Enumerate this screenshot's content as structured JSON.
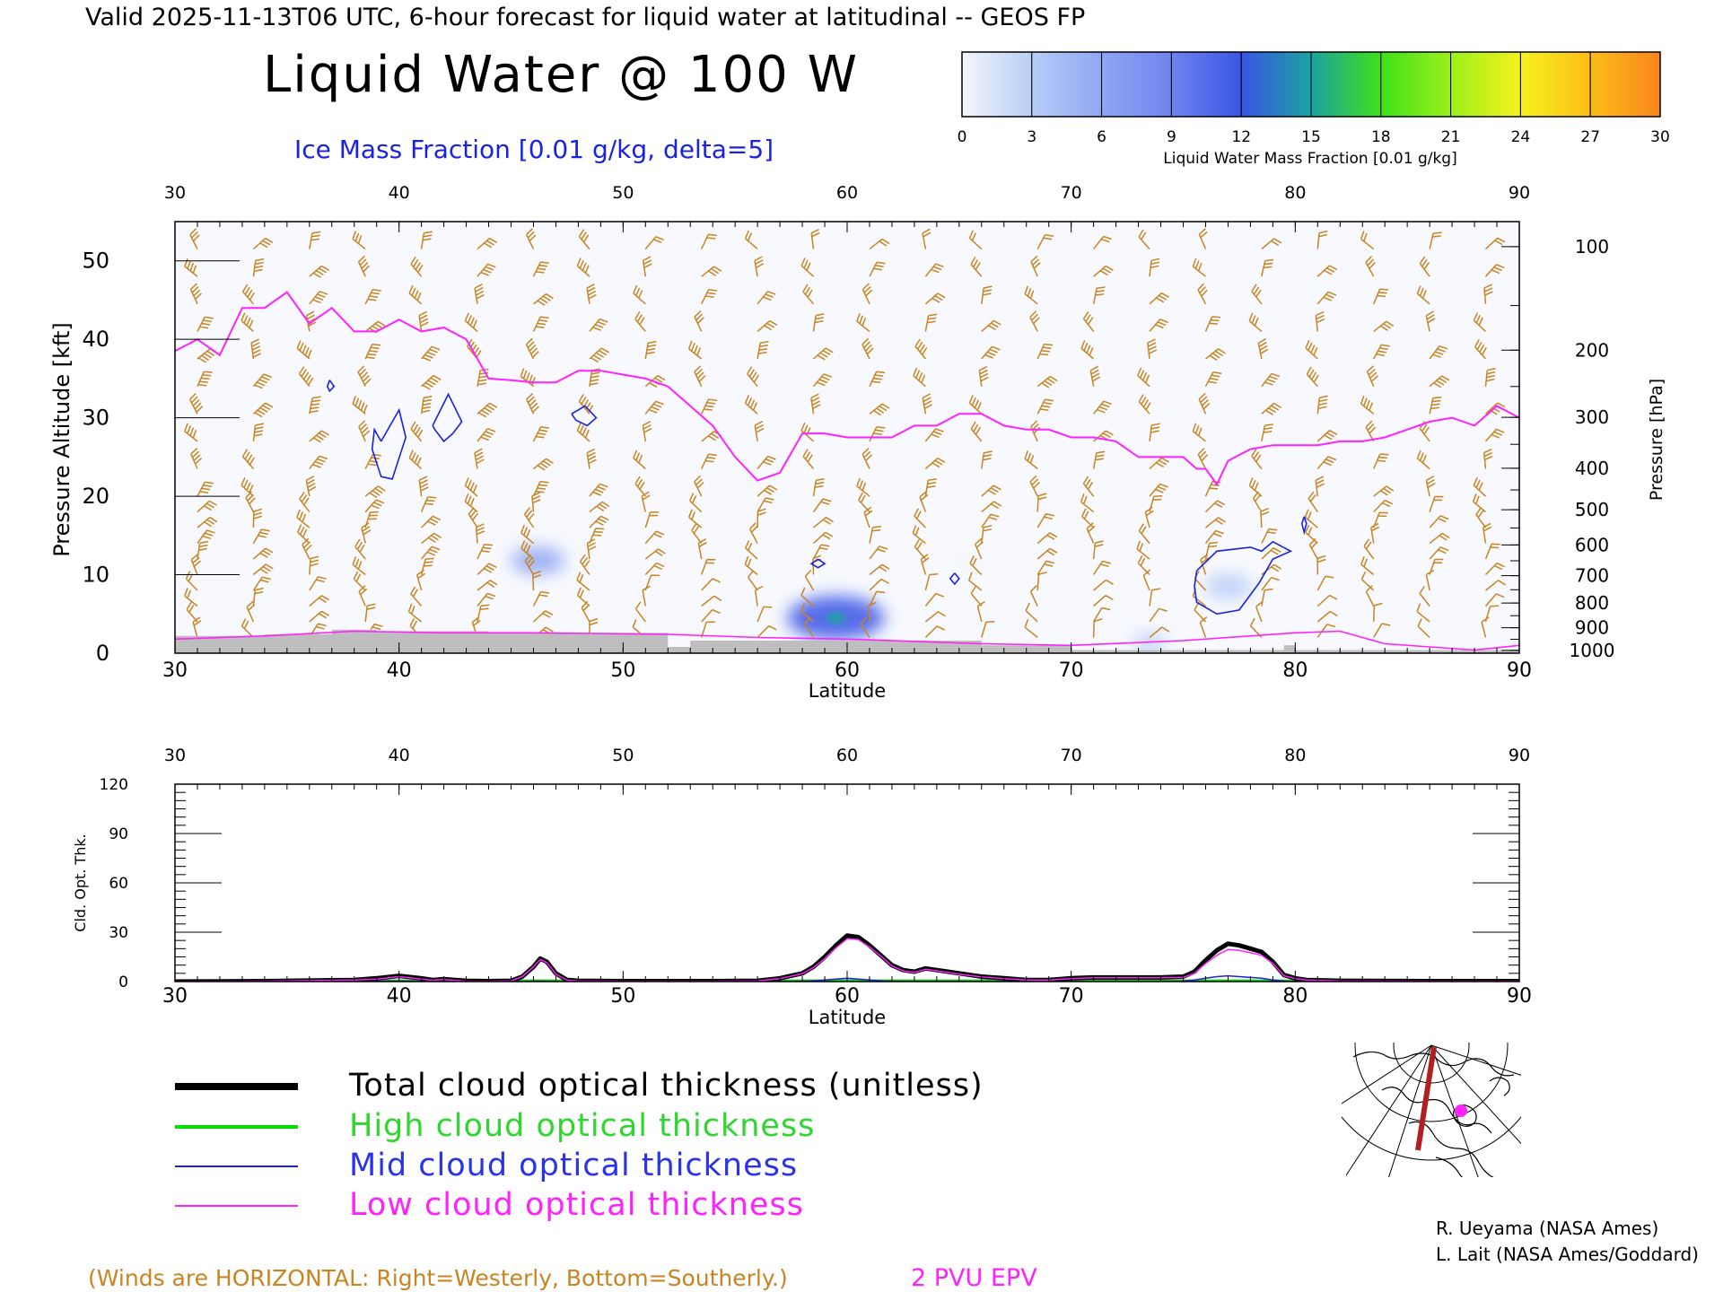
{
  "header": {
    "valid_line": "Valid 2025-11-13T06 UTC, 6-hour forecast for liquid water at latitudinal -- GEOS FP",
    "title": "Liquid Water @ 100 W",
    "subtitle": "Ice Mass Fraction [0.01 g/kg, delta=5]"
  },
  "colorbar": {
    "label": "Liquid Water Mass Fraction [0.01 g/kg]",
    "ticks": [
      "0",
      "3",
      "6",
      "9",
      "12",
      "15",
      "18",
      "21",
      "24",
      "27",
      "30"
    ],
    "colors": [
      "#f4f6fc",
      "#b8cdf6",
      "#8fa6f4",
      "#6e84ee",
      "#3a55e6",
      "#1aa3a0",
      "#3fe01a",
      "#9bf01a",
      "#f6f21c",
      "#fcbd17",
      "#f9851c",
      "#f43215"
    ]
  },
  "colors": {
    "wind_barb": "#c88420",
    "epv": "#ff22ff",
    "ice_contour": "#1a22e0",
    "terrain": "#bebebe",
    "total": "#000000",
    "high": "#00dd00",
    "mid": "#1a22e0",
    "low": "#ff22ff"
  },
  "chart_data": [
    {
      "type": "heatmap",
      "title": "Liquid Water @ 100 W",
      "xlabel": "Latitude",
      "ylabel": "Pressure Altitude [kft]",
      "y2label": "Pressure [hPa]",
      "xlim": [
        30,
        90
      ],
      "ylim": [
        0,
        55
      ],
      "x_ticks": [
        "30",
        "40",
        "50",
        "60",
        "70",
        "80",
        "90"
      ],
      "y_ticks": [
        "0",
        "10",
        "20",
        "30",
        "40",
        "50"
      ],
      "pressure_ticks": [
        "100",
        "200",
        "300",
        "400",
        "500",
        "600",
        "700",
        "800",
        "900",
        "1000"
      ],
      "liquid_water_patches": [
        {
          "lat": 46.2,
          "alt": 11.8,
          "value": 5
        },
        {
          "lat": 59.5,
          "alt": 4.5,
          "value": 11
        },
        {
          "lat": 65.5,
          "alt": 11.5,
          "value": 1
        },
        {
          "lat": 77.0,
          "alt": 8.5,
          "value": 4
        },
        {
          "lat": 73.5,
          "alt": 1.3,
          "value": 2
        }
      ],
      "epv_2pvu": {
        "name": "2 PVU EPV",
        "lat": [
          30,
          31,
          32,
          33,
          34,
          35,
          36,
          37,
          38,
          39,
          40,
          41,
          42,
          43,
          44,
          45,
          46,
          47,
          48,
          49,
          50,
          51,
          52,
          53,
          54,
          55,
          56,
          57,
          58,
          59,
          60,
          61,
          62,
          63,
          64,
          65,
          66,
          67,
          68,
          69,
          70,
          71,
          72,
          73,
          74,
          75,
          75.6,
          76,
          76.5,
          77,
          78,
          79,
          80,
          81,
          82,
          83,
          84,
          85,
          86,
          87,
          88,
          89,
          90
        ],
        "alt": [
          38.5,
          40,
          38,
          44,
          44,
          46,
          42,
          44,
          41,
          41,
          42.5,
          41,
          41.5,
          40,
          35,
          34.8,
          34.5,
          34.5,
          36,
          36,
          35.5,
          35,
          34,
          31.5,
          29,
          25,
          22,
          23,
          28,
          28,
          27.5,
          27.5,
          27.5,
          29,
          29,
          30.5,
          30.5,
          29,
          28.5,
          28.5,
          27.5,
          27.5,
          27,
          25,
          25,
          25,
          23.5,
          23.5,
          21.5,
          24.5,
          26,
          26.5,
          26.5,
          26.5,
          27,
          27,
          27.5,
          28.5,
          29.5,
          30,
          29,
          31.5,
          30
        ]
      },
      "terrain_height_kft": {
        "lat": [
          30,
          34,
          37,
          39,
          44,
          51.7,
          52,
          53,
          60,
          66,
          70,
          75,
          79.5,
          80,
          90
        ],
        "alt": [
          2.2,
          2.4,
          3.0,
          2.8,
          2.6,
          2.6,
          0.8,
          1.6,
          1.6,
          1.0,
          0.4,
          0.4,
          1.0,
          0.4,
          0.2
        ]
      },
      "ice_contours": [
        {
          "lat": [
            39.2,
            40.0,
            40.3,
            39.9,
            39.7,
            39.2,
            38.8,
            38.9,
            39.2
          ],
          "alt": [
            27.0,
            31.0,
            27.5,
            24.0,
            22.2,
            22.5,
            26.0,
            28.5,
            27.0
          ]
        },
        {
          "lat": [
            41.5,
            42.2,
            42.8,
            42.4,
            42.0,
            41.6,
            41.5
          ],
          "alt": [
            29.0,
            33.0,
            29.5,
            28.0,
            27.0,
            28.5,
            29.0
          ]
        },
        {
          "lat": [
            47.7,
            48.3,
            48.8,
            48.4,
            47.9,
            47.7
          ],
          "alt": [
            30.5,
            31.5,
            30.0,
            29.0,
            29.7,
            30.5
          ]
        },
        {
          "lat": [
            36.9,
            37.1,
            36.9,
            36.8,
            36.9
          ],
          "alt": [
            34.8,
            34.0,
            33.4,
            34.0,
            34.8
          ]
        },
        {
          "lat": [
            58.7,
            59.0,
            58.7,
            58.4,
            58.7
          ],
          "alt": [
            12.0,
            11.4,
            10.9,
            11.4,
            12.0
          ]
        },
        {
          "lat": [
            64.8,
            65.0,
            64.8,
            64.6,
            64.8
          ],
          "alt": [
            10.2,
            9.5,
            8.8,
            9.5,
            10.2
          ]
        },
        {
          "lat": [
            75.6,
            76.5,
            78.0,
            78.5,
            79.0,
            79.8,
            79.0,
            78.4,
            77.5,
            76.5,
            75.6,
            75.5,
            75.6
          ],
          "alt": [
            10.5,
            13.0,
            13.5,
            13.0,
            14.2,
            13.0,
            12.0,
            9.0,
            5.5,
            5.0,
            6.5,
            8.5,
            10.5
          ]
        },
        {
          "lat": [
            80.4,
            80.5,
            80.4,
            80.3,
            80.4
          ],
          "alt": [
            17.4,
            16.5,
            15.4,
            16.5,
            17.4
          ]
        }
      ],
      "wind_barbs_note": "(Winds are HORIZONTAL: Right=Westerly, Bottom=Southerly.)",
      "epv_label": "2 PVU EPV"
    },
    {
      "type": "line",
      "xlabel": "Latitude",
      "ylabel": "Cld. Opt. Thk.",
      "xlim": [
        30,
        90
      ],
      "ylim": [
        0,
        120
      ],
      "x_ticks": [
        "30",
        "40",
        "50",
        "60",
        "70",
        "80",
        "90"
      ],
      "y_ticks": [
        "0",
        "30",
        "60",
        "90",
        "120"
      ],
      "x": [
        30,
        34,
        38,
        39,
        40,
        41,
        41.5,
        42,
        43,
        44,
        45,
        45.5,
        46,
        46.3,
        46.6,
        47,
        47.5,
        48,
        50,
        54,
        56,
        57,
        58,
        58.5,
        59,
        59.5,
        60,
        60.5,
        61,
        61.5,
        62,
        62.5,
        63,
        63.5,
        64,
        64.5,
        65,
        66,
        67,
        68,
        69,
        70,
        71,
        73,
        74,
        75,
        75.5,
        76,
        76.5,
        77,
        77.5,
        78,
        78.5,
        79,
        79.5,
        80,
        80.5,
        82,
        86,
        90
      ],
      "series": [
        {
          "name": "Total cloud optical thickness (unitless)",
          "values": [
            0,
            0.3,
            1,
            2,
            3.5,
            2,
            1,
            1.5,
            0.5,
            0.3,
            0.5,
            3,
            9,
            14,
            12,
            5,
            1,
            0.5,
            0.3,
            0.3,
            0.5,
            2,
            5,
            9,
            15,
            22,
            28,
            27,
            22,
            16,
            10,
            7,
            6,
            8,
            7,
            6,
            5,
            3,
            2,
            1,
            1,
            2,
            2.5,
            2.5,
            2.5,
            3,
            6,
            13,
            19,
            23,
            22,
            20,
            18,
            12,
            4,
            2,
            1,
            0.5,
            0.3,
            0.3
          ]
        },
        {
          "name": "High cloud optical thickness",
          "values": [
            0.5,
            0.5,
            0.5,
            0.5,
            0.5,
            0.5,
            0.5,
            0.5,
            0.5,
            0.5,
            0.5,
            0.5,
            0.5,
            0.5,
            0.5,
            0.5,
            0.5,
            0.5,
            0.5,
            0.5,
            0.5,
            0.5,
            0.5,
            0.5,
            0.5,
            0.5,
            0.5,
            0.5,
            0.5,
            0.5,
            0.5,
            0.5,
            0.5,
            0.5,
            0.5,
            0.5,
            0.5,
            0.5,
            0.5,
            0.5,
            0.5,
            0.5,
            0.5,
            0.5,
            0.5,
            0.5,
            0.5,
            0.5,
            0.5,
            0.5,
            0.5,
            0.5,
            0.5,
            0.5,
            0.5,
            0.5,
            0.5,
            0.5,
            0.5,
            0.5
          ]
        },
        {
          "name": "Mid cloud optical thickness",
          "values": [
            0,
            0,
            0,
            0.3,
            0.3,
            0.2,
            0.1,
            0.1,
            0,
            0,
            0,
            0,
            0.2,
            0.3,
            0.2,
            0,
            0,
            0,
            0,
            0,
            0,
            0,
            0.2,
            0.5,
            1,
            1.5,
            2,
            1.5,
            1,
            0.5,
            0.3,
            0.2,
            0.1,
            0.1,
            0.1,
            0.1,
            0.1,
            0,
            0,
            0,
            0,
            0,
            0,
            0,
            0,
            0.3,
            1,
            2,
            3,
            3.5,
            3,
            2.5,
            2,
            1,
            0.3,
            0.1,
            0,
            0,
            0,
            0
          ]
        },
        {
          "name": "Low cloud optical thickness",
          "values": [
            0,
            0.3,
            1,
            1.5,
            3,
            1.5,
            0.8,
            1.2,
            0.3,
            0.2,
            0.4,
            3,
            9,
            13.5,
            11.5,
            4.5,
            0.8,
            0.4,
            0.2,
            0.2,
            0.4,
            1.8,
            4.8,
            8.5,
            14,
            20.5,
            26,
            25.5,
            21,
            15.5,
            9.5,
            6.5,
            5.5,
            7.5,
            6.5,
            5.5,
            4.5,
            2.8,
            1.8,
            0.9,
            0.9,
            1.8,
            2.3,
            2.3,
            2.3,
            2.5,
            5,
            11,
            16,
            19.5,
            19,
            17.5,
            16,
            11,
            3.5,
            1.8,
            0.9,
            0.4,
            0.2,
            0.2
          ]
        }
      ]
    }
  ],
  "legend": {
    "total": "Total cloud optical thickness (unitless)",
    "high": "High cloud optical thickness",
    "mid": "Mid cloud optical thickness",
    "low": "Low cloud optical thickness"
  },
  "footer": {
    "winds_note": "(Winds are HORIZONTAL: Right=Westerly, Bottom=Southerly.)",
    "epv_label": "2 PVU EPV",
    "credit1": "R. Ueyama (NASA Ames)",
    "credit2": "L. Lait (NASA Ames/Goddard)"
  }
}
